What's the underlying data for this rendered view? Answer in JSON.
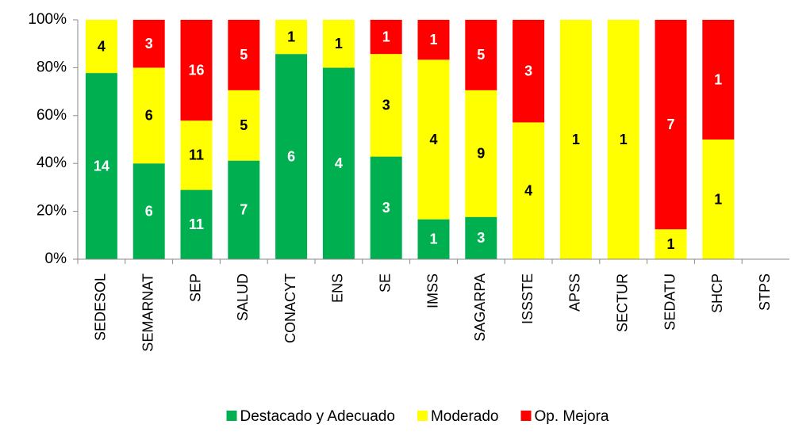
{
  "chart_data": {
    "type": "bar",
    "stacked": "percent",
    "categories": [
      "SEDESOL",
      "SEMARNAT",
      "SEP",
      "SALUD",
      "CONACYT",
      "ENS",
      "SE",
      "IMSS",
      "SAGARPA",
      "ISSSTE",
      "APSS",
      "SECTUR",
      "SEDATU",
      "SHCP",
      "STPS"
    ],
    "series": [
      {
        "name": "Destacado y Adecuado",
        "color": "#00b050",
        "label_color": "#ffffff",
        "values": [
          14,
          6,
          11,
          7,
          6,
          4,
          3,
          1,
          3,
          0,
          0,
          0,
          0,
          0,
          0
        ]
      },
      {
        "name": "Moderado",
        "color": "#ffff00",
        "label_color": "#000000",
        "values": [
          4,
          6,
          11,
          5,
          1,
          1,
          3,
          4,
          9,
          4,
          1,
          1,
          1,
          1,
          0
        ]
      },
      {
        "name": "Op. Mejora",
        "color": "#ff0000",
        "label_color": "#ffffff",
        "values": [
          0,
          3,
          16,
          5,
          0,
          0,
          1,
          1,
          5,
          3,
          0,
          0,
          7,
          1,
          0
        ]
      }
    ],
    "ylim": [
      0,
      100
    ],
    "yticks": [
      {
        "value": 0,
        "label": "0%"
      },
      {
        "value": 20,
        "label": "20%"
      },
      {
        "value": 40,
        "label": "40%"
      },
      {
        "value": 60,
        "label": "60%"
      },
      {
        "value": 80,
        "label": "80%"
      },
      {
        "value": 100,
        "label": "100%"
      }
    ],
    "legend": "bottom"
  }
}
